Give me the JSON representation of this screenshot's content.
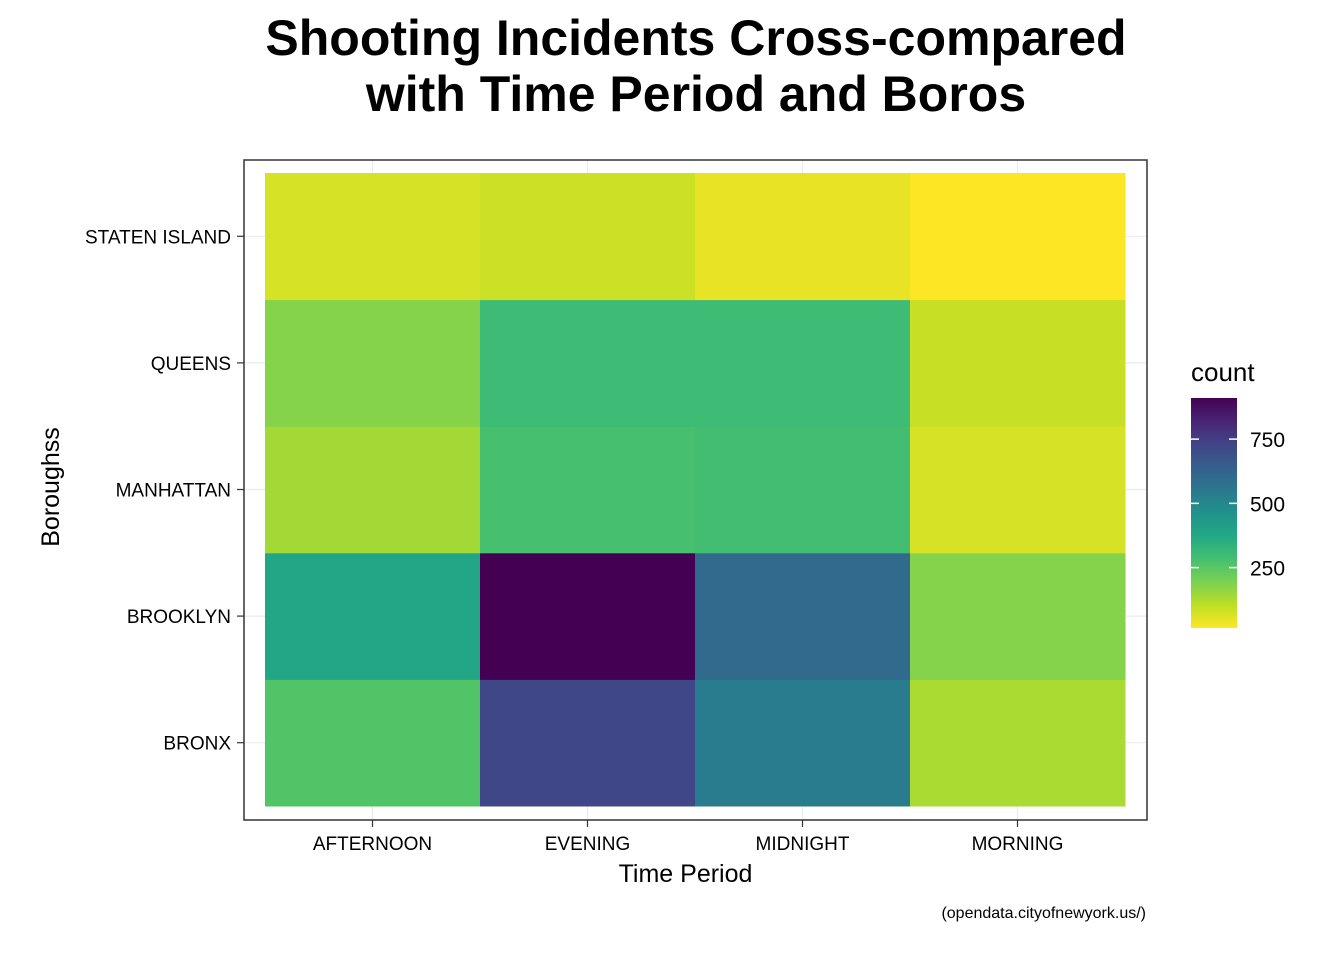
{
  "chart_data": {
    "type": "heatmap",
    "title_line1": "Shooting Incidents Cross-compared",
    "title_line2": "with Time Period and Boros",
    "xlabel": "Time Period",
    "ylabel": "Boroughss",
    "caption": "(opendata.cityofnewyork.us/)",
    "x_categories": [
      "AFTERNOON",
      "EVENING",
      "MIDNIGHT",
      "MORNING"
    ],
    "y_categories": [
      "BRONX",
      "BROOKLYN",
      "MANHATTAN",
      "QUEENS",
      "STATEN ISLAND"
    ],
    "values": {
      "BRONX": [
        260,
        720,
        540,
        130
      ],
      "BROOKLYN": [
        380,
        910,
        600,
        180
      ],
      "MANHATTAN": [
        140,
        280,
        290,
        70
      ],
      "QUEENS": [
        180,
        300,
        300,
        90
      ],
      "STATEN ISLAND": [
        70,
        85,
        45,
        15
      ]
    },
    "legend": {
      "title": "count",
      "ticks": [
        250,
        500,
        750
      ],
      "min": 15,
      "max": 910,
      "colormap": "viridis-reversed"
    },
    "grid": true
  }
}
